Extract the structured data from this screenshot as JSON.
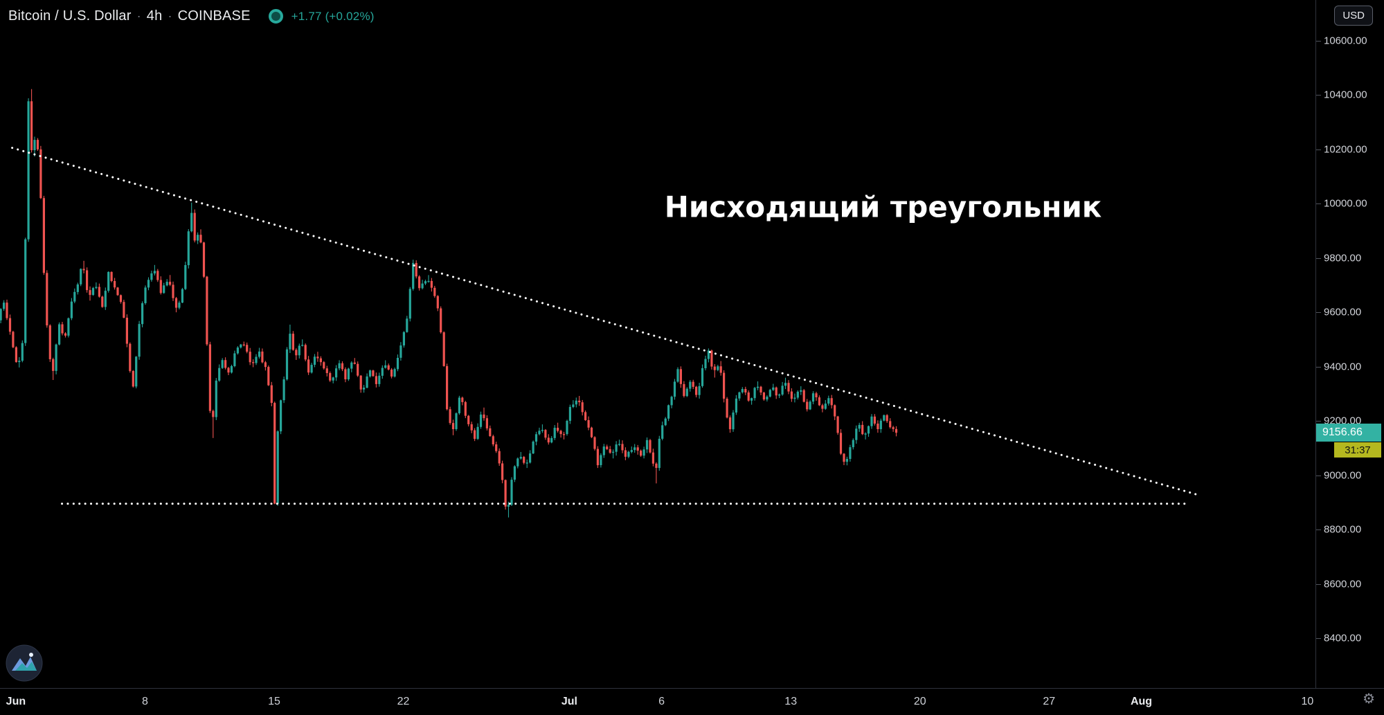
{
  "header": {
    "symbol": "Bitcoin / U.S. Dollar",
    "separator": "·",
    "interval": "4h",
    "exchange": "COINBASE",
    "change": "+1.77 (+0.02%)"
  },
  "toolbar": {
    "currency_label": "USD"
  },
  "chart_data": {
    "type": "candlestick",
    "title": "Bitcoin / U.S. Dollar, 4h, COINBASE",
    "interval": "4h",
    "up_color": "#26a69a",
    "down_color": "#ef5350",
    "last_price": 9156.66,
    "last_price_text": "9156.66",
    "countdown": "31:37",
    "price_axis": {
      "labels": [
        "10600.00",
        "10400.00",
        "10200.00",
        "10000.00",
        "9800.00",
        "9600.00",
        "9400.00",
        "9200.00",
        "9000.00",
        "8800.00",
        "8600.00",
        "8400.00"
      ],
      "values": [
        10600,
        10400,
        10200,
        10000,
        9800,
        9600,
        9400,
        9200,
        9000,
        8800,
        8600,
        8400
      ]
    },
    "time_axis": {
      "labels": [
        {
          "text": "Jun",
          "day": 0,
          "major": true
        },
        {
          "text": "8",
          "day": 7
        },
        {
          "text": "15",
          "day": 14
        },
        {
          "text": "22",
          "day": 21
        },
        {
          "text": "Jul",
          "day": 30,
          "major": true
        },
        {
          "text": "6",
          "day": 35
        },
        {
          "text": "13",
          "day": 42
        },
        {
          "text": "20",
          "day": 49
        },
        {
          "text": "27",
          "day": 56
        },
        {
          "text": "Aug",
          "day": 61,
          "major": true
        },
        {
          "text": "10",
          "day": 70
        }
      ]
    },
    "candles_per_day": 6,
    "price_path_anchors": [
      [
        -0.9,
        9570
      ],
      [
        -0.6,
        9645
      ],
      [
        -0.35,
        9560
      ],
      [
        -0.1,
        9480
      ],
      [
        0.2,
        9395
      ],
      [
        0.5,
        9510
      ],
      [
        0.68,
        10150
      ],
      [
        0.8,
        10460
      ],
      [
        0.95,
        10160
      ],
      [
        1.12,
        10245
      ],
      [
        1.35,
        10170
      ],
      [
        1.55,
        9810
      ],
      [
        1.8,
        9520
      ],
      [
        2.05,
        9355
      ],
      [
        2.4,
        9560
      ],
      [
        2.75,
        9505
      ],
      [
        3.1,
        9640
      ],
      [
        3.45,
        9700
      ],
      [
        3.7,
        9790
      ],
      [
        4.0,
        9650
      ],
      [
        4.35,
        9710
      ],
      [
        4.75,
        9615
      ],
      [
        5.1,
        9745
      ],
      [
        5.5,
        9680
      ],
      [
        5.9,
        9610
      ],
      [
        6.25,
        9385
      ],
      [
        6.45,
        9325
      ],
      [
        6.75,
        9555
      ],
      [
        7.1,
        9690
      ],
      [
        7.55,
        9765
      ],
      [
        7.95,
        9675
      ],
      [
        8.35,
        9730
      ],
      [
        8.75,
        9605
      ],
      [
        9.05,
        9655
      ],
      [
        9.3,
        9790
      ],
      [
        9.55,
        9995
      ],
      [
        9.8,
        9850
      ],
      [
        10.05,
        9905
      ],
      [
        10.3,
        9710
      ],
      [
        10.5,
        9390
      ],
      [
        10.68,
        9125
      ],
      [
        10.9,
        9345
      ],
      [
        11.25,
        9425
      ],
      [
        11.65,
        9375
      ],
      [
        12.0,
        9455
      ],
      [
        12.4,
        9490
      ],
      [
        12.85,
        9400
      ],
      [
        13.25,
        9460
      ],
      [
        13.65,
        9385
      ],
      [
        13.95,
        9265
      ],
      [
        14.1,
        8885
      ],
      [
        14.3,
        9205
      ],
      [
        14.6,
        9345
      ],
      [
        14.9,
        9545
      ],
      [
        15.2,
        9425
      ],
      [
        15.55,
        9490
      ],
      [
        15.95,
        9375
      ],
      [
        16.35,
        9450
      ],
      [
        16.75,
        9395
      ],
      [
        17.15,
        9340
      ],
      [
        17.55,
        9420
      ],
      [
        17.95,
        9355
      ],
      [
        18.35,
        9430
      ],
      [
        18.85,
        9305
      ],
      [
        19.25,
        9390
      ],
      [
        19.65,
        9335
      ],
      [
        20.05,
        9420
      ],
      [
        20.45,
        9365
      ],
      [
        20.85,
        9440
      ],
      [
        21.25,
        9565
      ],
      [
        21.6,
        9780
      ],
      [
        21.95,
        9685
      ],
      [
        22.35,
        9730
      ],
      [
        22.85,
        9655
      ],
      [
        23.2,
        9495
      ],
      [
        23.45,
        9235
      ],
      [
        23.75,
        9155
      ],
      [
        24.15,
        9290
      ],
      [
        24.55,
        9205
      ],
      [
        24.95,
        9135
      ],
      [
        25.35,
        9240
      ],
      [
        25.75,
        9150
      ],
      [
        26.15,
        9085
      ],
      [
        26.45,
        8985
      ],
      [
        26.7,
        8840
      ],
      [
        26.95,
        8985
      ],
      [
        27.35,
        9080
      ],
      [
        27.75,
        9035
      ],
      [
        28.15,
        9130
      ],
      [
        28.55,
        9185
      ],
      [
        28.95,
        9115
      ],
      [
        29.35,
        9180
      ],
      [
        29.75,
        9135
      ],
      [
        30.15,
        9255
      ],
      [
        30.5,
        9285
      ],
      [
        30.95,
        9210
      ],
      [
        31.35,
        9135
      ],
      [
        31.6,
        9030
      ],
      [
        31.95,
        9105
      ],
      [
        32.35,
        9075
      ],
      [
        32.75,
        9125
      ],
      [
        33.15,
        9070
      ],
      [
        33.55,
        9110
      ],
      [
        33.95,
        9065
      ],
      [
        34.3,
        9125
      ],
      [
        34.6,
        9060
      ],
      [
        34.73,
        8965
      ],
      [
        34.9,
        9125
      ],
      [
        35.25,
        9205
      ],
      [
        35.65,
        9295
      ],
      [
        35.95,
        9385
      ],
      [
        36.3,
        9290
      ],
      [
        36.65,
        9355
      ],
      [
        37.0,
        9295
      ],
      [
        37.35,
        9405
      ],
      [
        37.62,
        9460
      ],
      [
        37.9,
        9370
      ],
      [
        38.2,
        9420
      ],
      [
        38.5,
        9265
      ],
      [
        38.78,
        9165
      ],
      [
        39.1,
        9285
      ],
      [
        39.45,
        9325
      ],
      [
        39.85,
        9265
      ],
      [
        40.25,
        9335
      ],
      [
        40.65,
        9275
      ],
      [
        41.05,
        9325
      ],
      [
        41.4,
        9285
      ],
      [
        41.75,
        9355
      ],
      [
        42.15,
        9275
      ],
      [
        42.55,
        9325
      ],
      [
        42.95,
        9245
      ],
      [
        43.35,
        9305
      ],
      [
        43.75,
        9235
      ],
      [
        44.1,
        9285
      ],
      [
        44.45,
        9225
      ],
      [
        44.8,
        9085
      ],
      [
        45.05,
        9040
      ],
      [
        45.4,
        9125
      ],
      [
        45.75,
        9185
      ],
      [
        46.1,
        9140
      ],
      [
        46.45,
        9215
      ],
      [
        46.8,
        9165
      ],
      [
        47.15,
        9225
      ],
      [
        47.5,
        9175
      ],
      [
        47.8,
        9156.66
      ]
    ],
    "trendlines": [
      {
        "name": "descending-resistance",
        "points": [
          [
            -0.2,
            10205
          ],
          [
            64.2,
            8925
          ]
        ]
      },
      {
        "name": "horizontal-support",
        "points": [
          [
            2.5,
            8895
          ],
          [
            63.5,
            8895
          ]
        ]
      }
    ],
    "annotation": {
      "text": "Нисходящий треугольник",
      "day": 47,
      "price": 9980
    }
  }
}
